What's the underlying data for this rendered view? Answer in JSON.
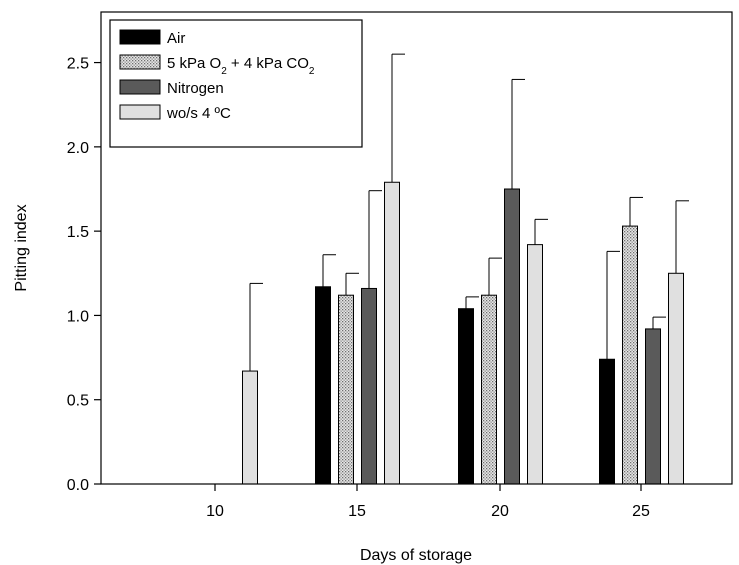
{
  "chart_data": {
    "type": "bar",
    "title": "",
    "xlabel": "Days of storage",
    "ylabel": "Pitting index",
    "categories": [
      "10",
      "15",
      "20",
      "25"
    ],
    "ylim": [
      0,
      2.8
    ],
    "yticks": [
      0.0,
      0.5,
      1.0,
      1.5,
      2.0,
      2.5
    ],
    "ytick_labels": [
      "0.0",
      "0.5",
      "1.0",
      "1.5",
      "2.0",
      "2.5"
    ],
    "grid": false,
    "legend_position": "top-left",
    "series": [
      {
        "name": "Air",
        "color": "#000000",
        "pattern": "solid",
        "values": [
          null,
          1.17,
          1.04,
          0.74
        ],
        "errors": [
          null,
          0.19,
          0.07,
          0.64
        ]
      },
      {
        "name": "5 kPa O₂ + 4 kPa CO₂",
        "color": "#c8c8c8",
        "pattern": "dots",
        "values": [
          null,
          1.12,
          1.12,
          1.53
        ],
        "errors": [
          null,
          0.13,
          0.22,
          0.17
        ]
      },
      {
        "name": "Nitrogen",
        "color": "#5a5a5a",
        "pattern": "solid",
        "values": [
          null,
          1.16,
          1.75,
          0.92
        ],
        "errors": [
          null,
          0.58,
          0.65,
          0.07
        ]
      },
      {
        "name": "wo/s 4 ºC",
        "color": "#e0e0e0",
        "pattern": "solid",
        "values": [
          0.67,
          1.79,
          1.42,
          1.25
        ],
        "errors": [
          0.52,
          0.76,
          0.15,
          0.43
        ]
      }
    ]
  }
}
